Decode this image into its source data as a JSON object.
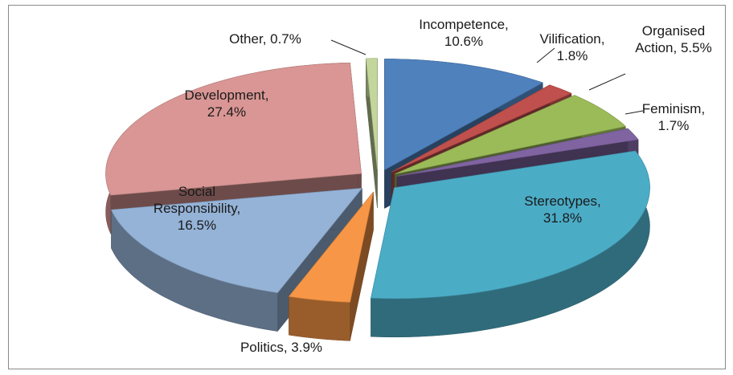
{
  "chart_data": {
    "type": "pie",
    "categories": [
      "Incompetence",
      "Vilification",
      "Organised Action",
      "Feminism",
      "Stereotypes",
      "Politics",
      "Social Responsibility",
      "Development",
      "Other"
    ],
    "values": [
      10.6,
      1.8,
      5.5,
      1.7,
      31.8,
      3.9,
      16.5,
      27.4,
      0.7
    ],
    "value_labels": [
      "Incompetence, 10.6%",
      "Vilification, 1.8%",
      "Organised Action, 5.5%",
      "Feminism, 1.7%",
      "Stereotypes, 31.8%",
      "Politics, 3.9%",
      "Social Responsibility, 16.5%",
      "Development, 27.4%",
      "Other, 0.7%"
    ],
    "colors": [
      "#4f81bd",
      "#c0504d",
      "#9bbb59",
      "#8064a2",
      "#4bacc6",
      "#f79646",
      "#95b3d7",
      "#d99694",
      "#c3d69b"
    ]
  }
}
